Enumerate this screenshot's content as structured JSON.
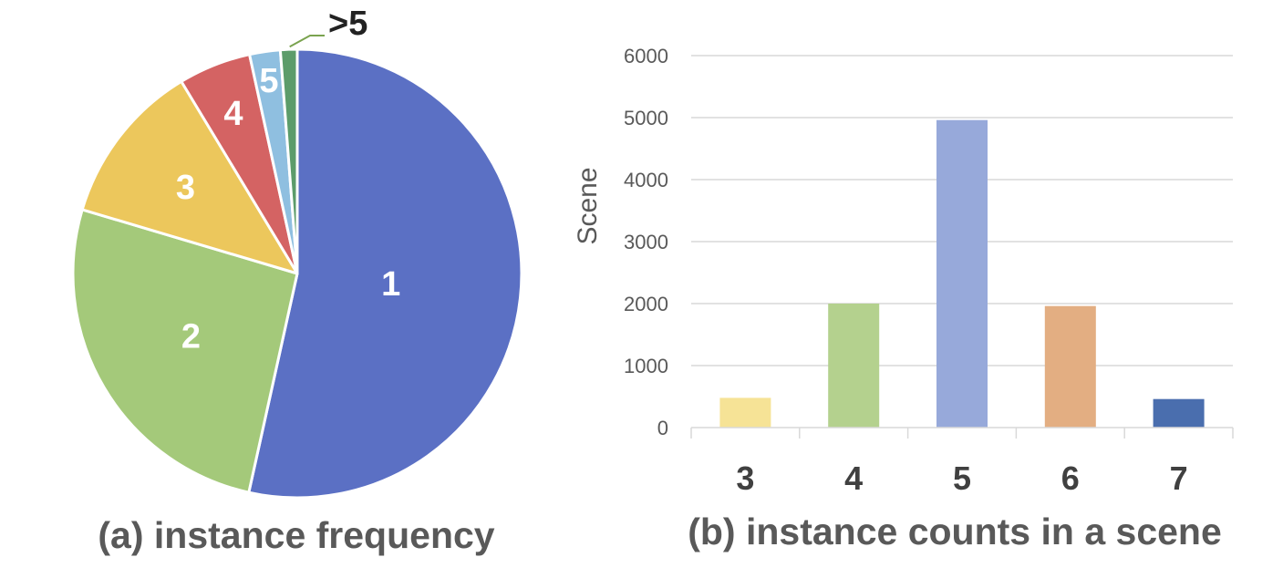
{
  "chart_data": [
    {
      "type": "pie",
      "caption": "(a) instance frequency",
      "slices": [
        {
          "label": "1",
          "value": 53.2,
          "color": "#5b70c4"
        },
        {
          "label": "2",
          "value": 26.0,
          "color": "#a4c97a"
        },
        {
          "label": "3",
          "value": 11.7,
          "color": "#ecc75c"
        },
        {
          "label": "4",
          "value": 5.2,
          "color": "#d46363"
        },
        {
          "label": "5",
          "value": 2.2,
          "color": "#8fbfe0"
        },
        {
          "label": ">5",
          "value": 1.2,
          "color": "#5c9c6a"
        }
      ],
      "leader_line_color": "#7aa34f"
    },
    {
      "type": "bar",
      "caption": "(b) instance counts in a scene",
      "ylabel": "Scene",
      "xlabel": "",
      "ylim": [
        0,
        6000
      ],
      "yticks": [
        "0",
        "1000",
        "2000",
        "3000",
        "4000",
        "5000",
        "6000"
      ],
      "grid": true,
      "categories": [
        "3",
        "4",
        "5",
        "6",
        "7"
      ],
      "values": [
        480,
        2000,
        4960,
        1960,
        460
      ],
      "colors": [
        "#f6e396",
        "#b4d18e",
        "#97a9da",
        "#e3ae82",
        "#4a6eae"
      ]
    }
  ]
}
